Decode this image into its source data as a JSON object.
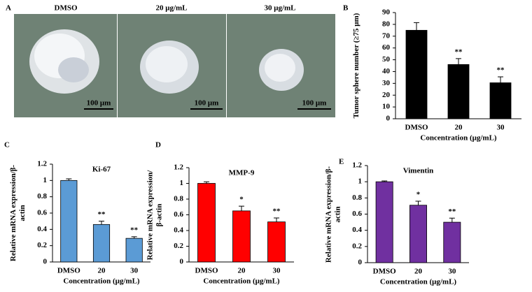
{
  "panel_a": {
    "label": "A",
    "columns": [
      "DMSO",
      "20 μg/mL",
      "30 μg/mL"
    ],
    "scale_bar": "100 μm"
  },
  "chart_data": [
    {
      "type": "bar",
      "panel_label": "B",
      "categories": [
        "DMSO",
        "20",
        "30"
      ],
      "values": [
        75,
        46,
        30.5
      ],
      "errors": [
        6.5,
        5,
        5
      ],
      "annotations": [
        null,
        "**",
        "**"
      ],
      "color": "#000000",
      "ylim": [
        0,
        90
      ],
      "yticks": [
        0,
        10,
        20,
        30,
        40,
        50,
        60,
        70,
        80,
        90
      ],
      "ylabel": "Tumor sphere number (≥75 μm)",
      "xlabel": "Concentration (μg/mL)"
    },
    {
      "type": "bar",
      "panel_label": "C",
      "title": "Ki-67",
      "categories": [
        "DMSO",
        "20",
        "30"
      ],
      "values": [
        1,
        0.46,
        0.29
      ],
      "errors": [
        0.02,
        0.04,
        0.02
      ],
      "annotations": [
        null,
        "**",
        "**"
      ],
      "color": "#5b9bd5",
      "ylim": [
        0,
        1.2
      ],
      "yticks": [
        0,
        0.2,
        0.4,
        0.6,
        0.8,
        1,
        1.2
      ],
      "ylabel": "Relative mRNA expression/β-actin",
      "xlabel": "Concentration (μg/mL)"
    },
    {
      "type": "bar",
      "panel_label": "D",
      "title": "MMP-9",
      "categories": [
        "DMSO",
        "20",
        "30"
      ],
      "values": [
        1,
        0.65,
        0.51
      ],
      "errors": [
        0.02,
        0.06,
        0.05
      ],
      "annotations": [
        null,
        "*",
        "**"
      ],
      "color": "#ff0000",
      "ylim": [
        0,
        1.2
      ],
      "yticks": [
        0,
        0.2,
        0.4,
        0.6,
        0.8,
        1,
        1.2
      ],
      "ylabel": "Relative mRNA expression/β-actin",
      "xlabel": "Concentration (μg/mL)"
    },
    {
      "type": "bar",
      "panel_label": "E",
      "title": "Vimentin",
      "categories": [
        "DMSO",
        "20",
        "30"
      ],
      "values": [
        1,
        0.71,
        0.5
      ],
      "errors": [
        0.01,
        0.05,
        0.05
      ],
      "annotations": [
        null,
        "*",
        "**"
      ],
      "color": "#7030a0",
      "ylim": [
        0,
        1.2
      ],
      "yticks": [
        0,
        0.2,
        0.4,
        0.6,
        0.8,
        1,
        1.2
      ],
      "ylabel": "Relative mRNA expression/β-actin",
      "xlabel": "Concentration (μg/mL)"
    }
  ]
}
